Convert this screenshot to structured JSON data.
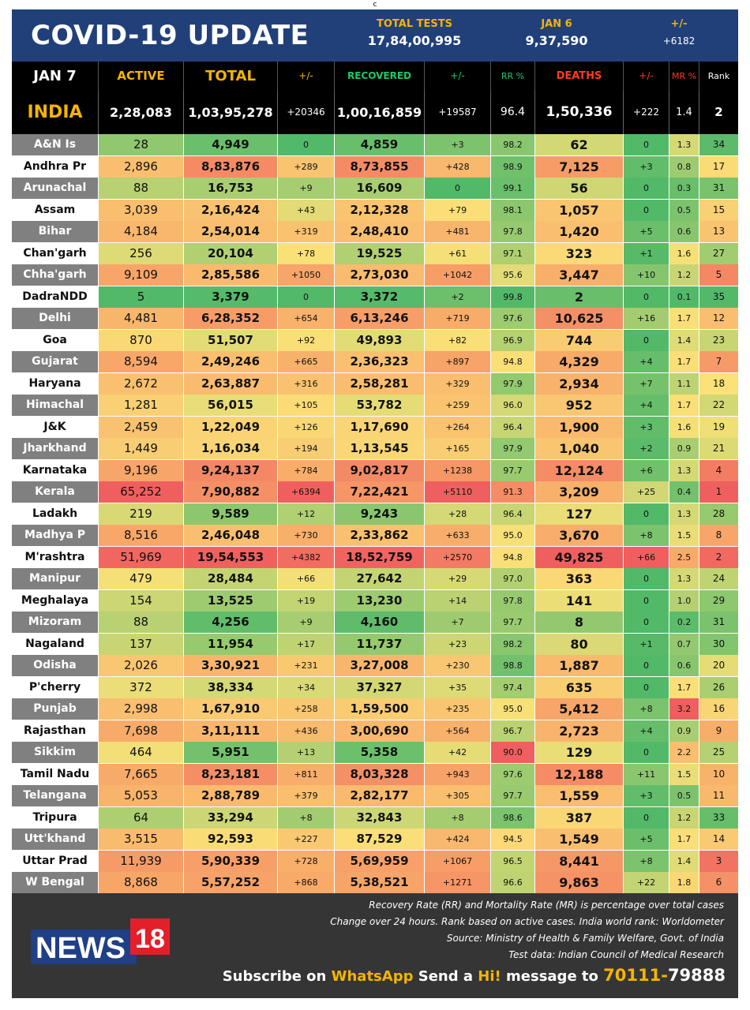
{
  "top_marker": "c",
  "header": {
    "title": "COVID-19 UPDATE",
    "tests_label": "TOTAL TESTS",
    "tests_value": "17,84,00,995",
    "date_label": "JAN 6",
    "date_value": "9,37,590",
    "change_label": "+/-",
    "change_value": "+6182"
  },
  "columns": {
    "date": "JAN 7",
    "active": "ACTIVE",
    "total": "TOTAL",
    "total_change": "+/-",
    "recovered": "RECOVERED",
    "recovered_change": "+/-",
    "rr": "RR %",
    "deaths": "DEATHS",
    "deaths_change": "+/-",
    "mr": "MR %",
    "rank": "Rank"
  },
  "india": {
    "name": "INDIA",
    "active": "2,28,083",
    "total": "1,03,95,278",
    "total_change": "+20346",
    "recovered": "1,00,16,859",
    "recovered_change": "+19587",
    "rr": "96.4",
    "deaths": "1,50,336",
    "deaths_change": "+222",
    "mr": "1.4",
    "rank": "2"
  },
  "chart_data": {
    "type": "table",
    "title": "COVID-19 UPDATE",
    "columns": [
      "State",
      "Active",
      "Total",
      "+/-",
      "Recovered",
      "+/-",
      "RR %",
      "Deaths",
      "+/-",
      "MR %",
      "Rank"
    ],
    "rows": [
      [
        "A&N Is",
        "28",
        "4,949",
        "0",
        "4,859",
        "+3",
        "98.2",
        "62",
        "0",
        "1.3",
        "34"
      ],
      [
        "Andhra Pr",
        "2,896",
        "8,83,876",
        "+289",
        "8,73,855",
        "+428",
        "98.9",
        "7,125",
        "+3",
        "0.8",
        "17"
      ],
      [
        "Arunachal",
        "88",
        "16,753",
        "+9",
        "16,609",
        "0",
        "99.1",
        "56",
        "0",
        "0.3",
        "31"
      ],
      [
        "Assam",
        "3,039",
        "2,16,424",
        "+43",
        "2,12,328",
        "+79",
        "98.1",
        "1,057",
        "0",
        "0.5",
        "15"
      ],
      [
        "Bihar",
        "4,184",
        "2,54,014",
        "+319",
        "2,48,410",
        "+481",
        "97.8",
        "1,420",
        "+5",
        "0.6",
        "13"
      ],
      [
        "Chan'garh",
        "256",
        "20,104",
        "+78",
        "19,525",
        "+61",
        "97.1",
        "323",
        "+1",
        "1.6",
        "27"
      ],
      [
        "Chha'garh",
        "9,109",
        "2,85,586",
        "+1050",
        "2,73,030",
        "+1042",
        "95.6",
        "3,447",
        "+10",
        "1.2",
        "5"
      ],
      [
        "DadraNDD",
        "5",
        "3,379",
        "0",
        "3,372",
        "+2",
        "99.8",
        "2",
        "0",
        "0.1",
        "35"
      ],
      [
        "Delhi",
        "4,481",
        "6,28,352",
        "+654",
        "6,13,246",
        "+719",
        "97.6",
        "10,625",
        "+16",
        "1.7",
        "12"
      ],
      [
        "Goa",
        "870",
        "51,507",
        "+92",
        "49,893",
        "+82",
        "96.9",
        "744",
        "0",
        "1.4",
        "23"
      ],
      [
        "Gujarat",
        "8,594",
        "2,49,246",
        "+665",
        "2,36,323",
        "+897",
        "94.8",
        "4,329",
        "+4",
        "1.7",
        "7"
      ],
      [
        "Haryana",
        "2,672",
        "2,63,887",
        "+316",
        "2,58,281",
        "+329",
        "97.9",
        "2,934",
        "+7",
        "1.1",
        "18"
      ],
      [
        "Himachal",
        "1,281",
        "56,015",
        "+105",
        "53,782",
        "+259",
        "96.0",
        "952",
        "+4",
        "1.7",
        "22"
      ],
      [
        "J&K",
        "2,459",
        "1,22,049",
        "+126",
        "1,17,690",
        "+264",
        "96.4",
        "1,900",
        "+3",
        "1.6",
        "19"
      ],
      [
        "Jharkhand",
        "1,449",
        "1,16,034",
        "+194",
        "1,13,545",
        "+165",
        "97.9",
        "1,040",
        "+2",
        "0.9",
        "21"
      ],
      [
        "Karnataka",
        "9,196",
        "9,24,137",
        "+784",
        "9,02,817",
        "+1238",
        "97.7",
        "12,124",
        "+6",
        "1.3",
        "4"
      ],
      [
        "Kerala",
        "65,252",
        "7,90,882",
        "+6394",
        "7,22,421",
        "+5110",
        "91.3",
        "3,209",
        "+25",
        "0.4",
        "1"
      ],
      [
        "Ladakh",
        "219",
        "9,589",
        "+12",
        "9,243",
        "+28",
        "96.4",
        "127",
        "0",
        "1.3",
        "28"
      ],
      [
        "Madhya P",
        "8,516",
        "2,46,048",
        "+730",
        "2,33,862",
        "+633",
        "95.0",
        "3,670",
        "+8",
        "1.5",
        "8"
      ],
      [
        "M'rashtra",
        "51,969",
        "19,54,553",
        "+4382",
        "18,52,759",
        "+2570",
        "94.8",
        "49,825",
        "+66",
        "2.5",
        "2"
      ],
      [
        "Manipur",
        "479",
        "28,484",
        "+66",
        "27,642",
        "+29",
        "97.0",
        "363",
        "0",
        "1.3",
        "24"
      ],
      [
        "Meghalaya",
        "154",
        "13,525",
        "+19",
        "13,230",
        "+14",
        "97.8",
        "141",
        "0",
        "1.0",
        "29"
      ],
      [
        "Mizoram",
        "88",
        "4,256",
        "+9",
        "4,160",
        "+7",
        "97.7",
        "8",
        "0",
        "0.2",
        "31"
      ],
      [
        "Nagaland",
        "137",
        "11,954",
        "+17",
        "11,737",
        "+23",
        "98.2",
        "80",
        "+1",
        "0.7",
        "30"
      ],
      [
        "Odisha",
        "2,026",
        "3,30,921",
        "+231",
        "3,27,008",
        "+230",
        "98.8",
        "1,887",
        "0",
        "0.6",
        "20"
      ],
      [
        "P'cherry",
        "372",
        "38,334",
        "+34",
        "37,327",
        "+35",
        "97.4",
        "635",
        "0",
        "1.7",
        "26"
      ],
      [
        "Punjab",
        "2,998",
        "1,67,910",
        "+258",
        "1,59,500",
        "+235",
        "95.0",
        "5,412",
        "+8",
        "3.2",
        "16"
      ],
      [
        "Rajasthan",
        "7,698",
        "3,11,111",
        "+436",
        "3,00,690",
        "+564",
        "96.7",
        "2,723",
        "+4",
        "0.9",
        "9"
      ],
      [
        "Sikkim",
        "464",
        "5,951",
        "+13",
        "5,358",
        "+42",
        "90.0",
        "129",
        "0",
        "2.2",
        "25"
      ],
      [
        "Tamil Nadu",
        "7,665",
        "8,23,181",
        "+811",
        "8,03,328",
        "+943",
        "97.6",
        "12,188",
        "+11",
        "1.5",
        "10"
      ],
      [
        "Telangana",
        "5,053",
        "2,88,789",
        "+379",
        "2,82,177",
        "+305",
        "97.7",
        "1,559",
        "+3",
        "0.5",
        "11"
      ],
      [
        "Tripura",
        "64",
        "33,294",
        "+8",
        "32,843",
        "+8",
        "98.6",
        "387",
        "0",
        "1.2",
        "33"
      ],
      [
        "Utt'khand",
        "3,515",
        "92,593",
        "+227",
        "87,529",
        "+424",
        "94.5",
        "1,549",
        "+5",
        "1.7",
        "14"
      ],
      [
        "Uttar Prad",
        "11,939",
        "5,90,339",
        "+728",
        "5,69,959",
        "+1067",
        "96.5",
        "8,441",
        "+8",
        "1.4",
        "3"
      ],
      [
        "W Bengal",
        "8,868",
        "5,57,252",
        "+868",
        "5,38,521",
        "+1271",
        "96.6",
        "9,863",
        "+22",
        "1.8",
        "6"
      ]
    ]
  },
  "footer": {
    "note1": "Recovery Rate (RR) and Mortality Rate (MR) is percentage over total cases",
    "note2": "Change over 24 hours. Rank based on active cases. India world rank: Worldometer",
    "note3": "Source: Ministry of Health & Family Welfare, Govt. of India",
    "note4": "Test data: Indian Council of Medical Research",
    "logo_text": "NEWS",
    "logo_number": "18",
    "sub_prefix": "Subscribe on ",
    "sub_app": "WhatsApp",
    "sub_mid": " Send a ",
    "sub_hi": "Hi!",
    "sub_msg": " message to ",
    "sub_num1": "70111-",
    "sub_num2": "79888"
  },
  "colors": {
    "header_bg": "#21407a",
    "accent_yellow": "#f5b400",
    "recovered_green": "#1fc76a",
    "deaths_red": "#ff3b1f",
    "footer_bg": "#353535",
    "logo_red": "#e3202a",
    "logo_blue": "#1f3f86"
  }
}
